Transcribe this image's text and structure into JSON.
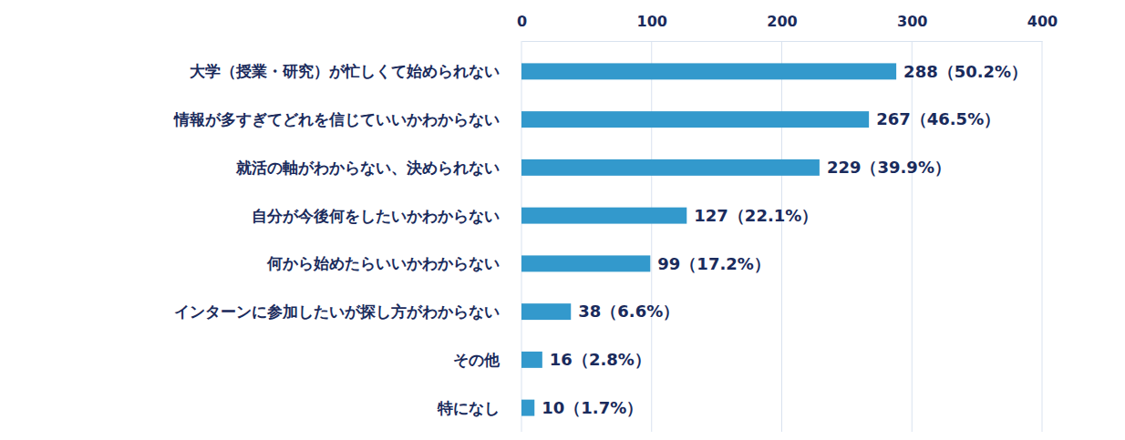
{
  "chart_data": {
    "type": "bar",
    "orientation": "horizontal",
    "categories": [
      "大学（授業・研究）が忙しくて始められない",
      "情報が多すぎてどれを信じていいかわからない",
      "就活の軸がわからない、決められない",
      "自分が今後何をしたいかわからない",
      "何から始めたらいいかわからない",
      "インターンに参加したいが探し方がわからない",
      "その他",
      "特になし"
    ],
    "values": [
      288,
      267,
      229,
      127,
      99,
      38,
      16,
      10
    ],
    "value_labels": [
      "288（50.2%）",
      "267（46.5%）",
      "229（39.9%）",
      "127（22.1%）",
      "99（17.2%）",
      "38（6.6%）",
      "16（2.8%）",
      "10（1.7%）"
    ],
    "data_labels": true,
    "color": "#3399cc",
    "xlim": [
      0,
      400
    ],
    "xticks": [
      0,
      100,
      200,
      300,
      400
    ],
    "grid": true
  }
}
